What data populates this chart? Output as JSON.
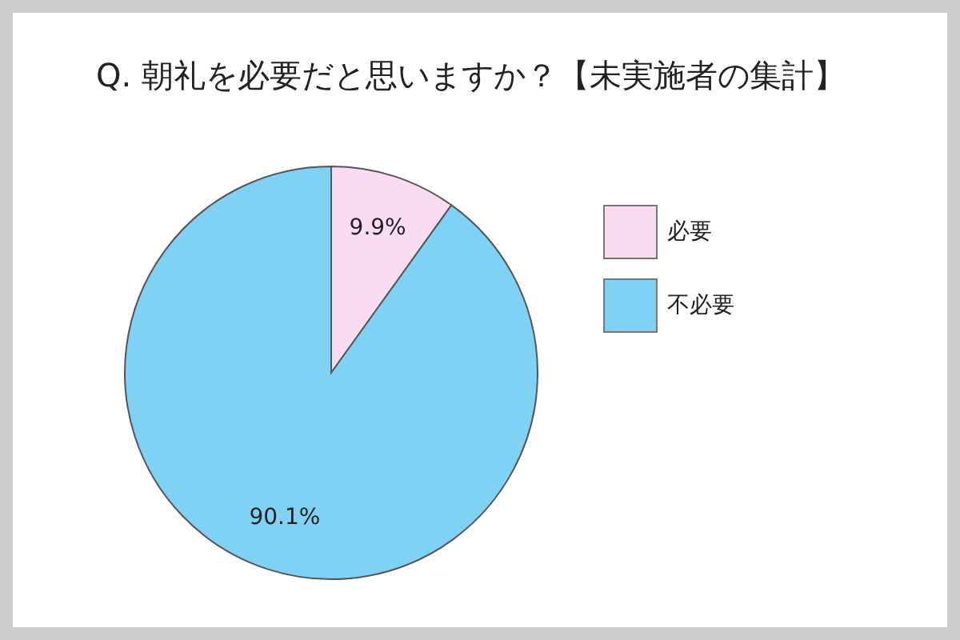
{
  "chart_data": {
    "type": "pie",
    "title": "Q. 朝礼を必要だと思いますか？【未実施者の集計】",
    "categories": [
      "必要",
      "不必要"
    ],
    "values": [
      9.9,
      90.1
    ],
    "colors": [
      "#f9dcf0",
      "#80d2f5"
    ],
    "value_labels": [
      "9.9%",
      "90.1%"
    ],
    "legend": "right"
  }
}
